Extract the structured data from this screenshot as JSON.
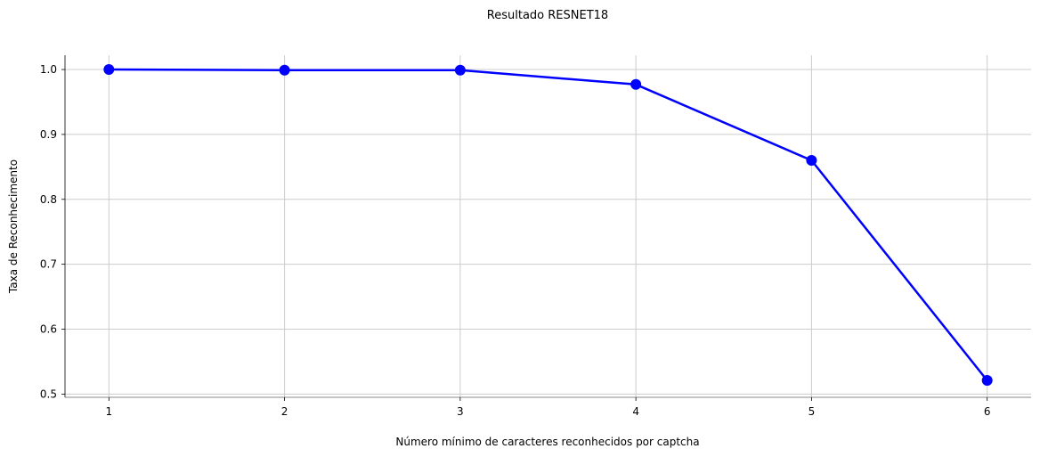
{
  "chart_data": {
    "type": "line",
    "title": "Resultado RESNET18",
    "xlabel": "Número mínimo de caracteres reconhecidos por captcha",
    "ylabel": "Taxa de Reconhecimento",
    "x": [
      1,
      2,
      3,
      4,
      5,
      6
    ],
    "x_tick_labels": [
      "1",
      "2",
      "3",
      "4",
      "5",
      "6"
    ],
    "xlim": [
      0.75,
      6.25
    ],
    "ylim": [
      0.495,
      1.022
    ],
    "y_ticks": [
      0.5,
      0.6,
      0.7,
      0.8,
      0.9,
      1.0
    ],
    "y_tick_labels": [
      "0.5",
      "0.6",
      "0.7",
      "0.8",
      "0.9",
      "1.0"
    ],
    "grid": true,
    "series": [
      {
        "values": [
          1.0,
          0.999,
          0.999,
          0.977,
          0.86,
          0.521
        ],
        "color": "#0000ff",
        "marker": "circle"
      }
    ]
  }
}
